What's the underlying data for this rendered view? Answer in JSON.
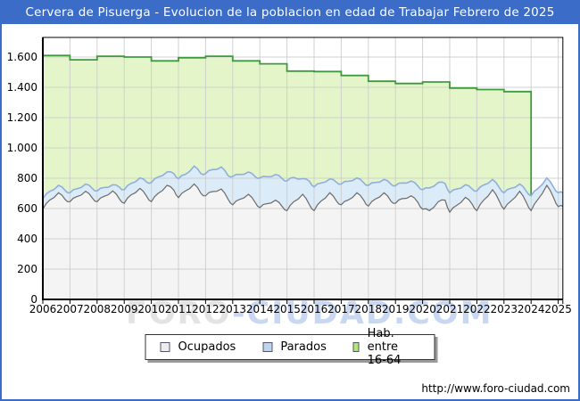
{
  "title": "Cervera de Pisuerga - Evolucion de la poblacion en edad de Trabajar Febrero de 2025",
  "watermark": {
    "part1": "FORO",
    "part2": "-CIUDAD.COM"
  },
  "footer_url": "http://www.foro-ciudad.com",
  "colors": {
    "frame_blue": "#3b6cc8",
    "title_text": "#ffffff",
    "grid": "#cbcbcb",
    "axis": "#000000",
    "hab_fill": "#e4f6c9",
    "hab_line": "#3f9a3f",
    "parados_fill": "#dcebf8",
    "parados_line": "#8fafdd",
    "ocupados_fill": "#f4f4f4",
    "ocupados_line": "#6b6b6b"
  },
  "chart_data": {
    "type": "area",
    "title": "Cervera de Pisuerga - Evolucion de la poblacion en edad de Trabajar Febrero de 2025",
    "xlabel": "",
    "ylabel": "",
    "xlim": [
      2006,
      2025.17
    ],
    "ylim": [
      0,
      1730
    ],
    "grid": true,
    "legend_position": "bottom-center",
    "x_ticks": {
      "values": [
        2006,
        2007,
        2008,
        2009,
        2010,
        2011,
        2012,
        2013,
        2014,
        2015,
        2016,
        2017,
        2018,
        2019,
        2020,
        2021,
        2022,
        2023,
        2024,
        2025
      ],
      "labels": [
        "2006",
        "2007",
        "2008",
        "2009",
        "2010",
        "2011",
        "2012",
        "2013",
        "2014",
        "2015",
        "2016",
        "2017",
        "2018",
        "2019",
        "2020",
        "2021",
        "2022",
        "2023",
        "2024",
        "2025"
      ]
    },
    "y_ticks": {
      "values": [
        0,
        200,
        400,
        600,
        800,
        1000,
        1200,
        1400,
        1600
      ],
      "labels": [
        "0",
        "200",
        "400",
        "600",
        "800",
        "1.000",
        "1.200",
        "1.400",
        "1.600"
      ]
    },
    "legend": [
      {
        "label": "Ocupados",
        "swatch": "#ededed"
      },
      {
        "label": "Parados",
        "swatch": "#bcd4ee"
      },
      {
        "label": "Hab. entre 16-64",
        "swatch": "#b0e878"
      }
    ],
    "series": {
      "hab_entre_16_64": {
        "name": "Hab. entre 16-64",
        "interval": "annual",
        "years": [
          2006,
          2007,
          2008,
          2009,
          2010,
          2011,
          2012,
          2013,
          2014,
          2015,
          2016,
          2017,
          2018,
          2019,
          2020,
          2021,
          2022,
          2023
        ],
        "values": [
          1610,
          1582,
          1605,
          1600,
          1575,
          1595,
          1605,
          1575,
          1555,
          1507,
          1504,
          1478,
          1440,
          1425,
          1435,
          1395,
          1385,
          1372
        ]
      },
      "ocupados": {
        "name": "Ocupados",
        "interval": "quarterly-approx",
        "x": [
          2006.0,
          2006.25,
          2006.58,
          2006.83,
          2007.0,
          2007.25,
          2007.58,
          2007.83,
          2008.0,
          2008.25,
          2008.58,
          2008.83,
          2009.0,
          2009.25,
          2009.58,
          2009.83,
          2010.0,
          2010.25,
          2010.58,
          2010.83,
          2011.0,
          2011.25,
          2011.58,
          2011.83,
          2012.0,
          2012.25,
          2012.58,
          2012.83,
          2013.0,
          2013.25,
          2013.58,
          2013.83,
          2014.0,
          2014.25,
          2014.58,
          2014.83,
          2015.0,
          2015.25,
          2015.58,
          2015.83,
          2016.0,
          2016.25,
          2016.58,
          2016.83,
          2017.0,
          2017.25,
          2017.58,
          2017.83,
          2018.0,
          2018.25,
          2018.58,
          2018.83,
          2019.0,
          2019.25,
          2019.58,
          2019.83,
          2020.0,
          2020.25,
          2020.58,
          2020.83,
          2021.0,
          2021.25,
          2021.58,
          2021.83,
          2022.0,
          2022.25,
          2022.58,
          2022.83,
          2023.0,
          2023.25,
          2023.58,
          2023.83,
          2024.0,
          2024.25,
          2024.58,
          2024.83,
          2025.0,
          2025.17
        ],
        "values": [
          596,
          655,
          704,
          658,
          645,
          678,
          714,
          668,
          645,
          680,
          716,
          662,
          635,
          690,
          733,
          680,
          645,
          700,
          753,
          722,
          672,
          715,
          762,
          700,
          684,
          712,
          729,
          662,
          625,
          660,
          694,
          640,
          606,
          632,
          655,
          612,
          586,
          645,
          694,
          625,
          586,
          648,
          704,
          648,
          625,
          655,
          704,
          655,
          616,
          662,
          704,
          650,
          635,
          665,
          684,
          640,
          596,
          586,
          645,
          655,
          576,
          620,
          674,
          628,
          586,
          655,
          724,
          648,
          596,
          648,
          714,
          638,
          586,
          660,
          753,
          672,
          612,
          615
        ]
      },
      "parados": {
        "name": "Parados",
        "interval": "quarterly-approx",
        "stacked": true,
        "base": "ocupados",
        "x": [
          2006.0,
          2006.25,
          2006.58,
          2006.83,
          2007.0,
          2007.25,
          2007.58,
          2007.83,
          2008.0,
          2008.25,
          2008.58,
          2008.83,
          2009.0,
          2009.25,
          2009.58,
          2009.83,
          2010.0,
          2010.25,
          2010.58,
          2010.83,
          2011.0,
          2011.25,
          2011.58,
          2011.83,
          2012.0,
          2012.25,
          2012.58,
          2012.83,
          2013.0,
          2013.25,
          2013.58,
          2013.83,
          2014.0,
          2014.25,
          2014.58,
          2014.83,
          2015.0,
          2015.25,
          2015.58,
          2015.83,
          2016.0,
          2016.25,
          2016.58,
          2016.83,
          2017.0,
          2017.25,
          2017.58,
          2017.83,
          2018.0,
          2018.25,
          2018.58,
          2018.83,
          2019.0,
          2019.25,
          2019.58,
          2019.83,
          2020.0,
          2020.25,
          2020.58,
          2020.83,
          2021.0,
          2021.25,
          2021.58,
          2021.83,
          2022.0,
          2022.25,
          2022.58,
          2022.83,
          2023.0,
          2023.25,
          2023.58,
          2023.83,
          2024.0,
          2024.25,
          2024.58,
          2024.83,
          2025.0,
          2025.17
        ],
        "values": [
          69,
          58,
          49,
          60,
          59,
          52,
          48,
          64,
          71,
          58,
          41,
          78,
          89,
          75,
          69,
          95,
          127,
          108,
          88,
          109,
          125,
          110,
          118,
          130,
          147,
          145,
          145,
          155,
          187,
          165,
          147,
          170,
          196,
          178,
          169,
          185,
          196,
          160,
          103,
          155,
          157,
          120,
          91,
          125,
          137,
          125,
          98,
          115,
          137,
          110,
          88,
          112,
          116,
          104,
          98,
          108,
          128,
          150,
          127,
          110,
          128,
          108,
          83,
          100,
          130,
          100,
          68,
          90,
          108,
          85,
          48,
          75,
          98,
          72,
          49,
          68,
          92,
          89
        ]
      }
    }
  }
}
